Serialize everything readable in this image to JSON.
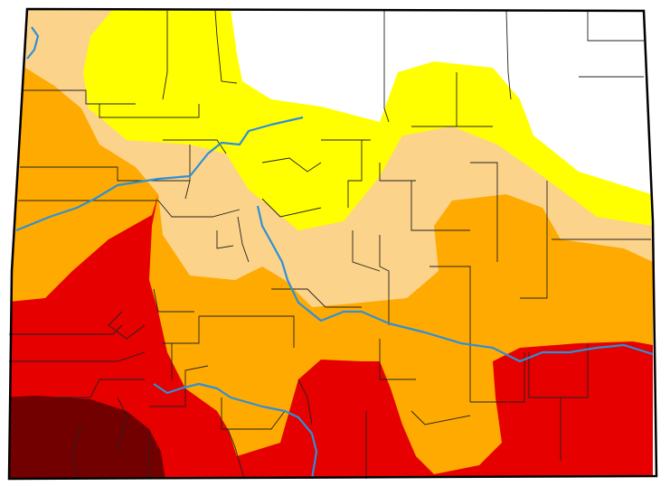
{
  "map": {
    "region": "Colorado",
    "type": "drought-monitor",
    "categories": [
      {
        "key": "none",
        "color": "#ffffff"
      },
      {
        "key": "D0",
        "color": "#ffff00"
      },
      {
        "key": "D1",
        "color": "#fcd38a"
      },
      {
        "key": "D2",
        "color": "#ffaa00"
      },
      {
        "key": "D3",
        "color": "#e60000"
      },
      {
        "key": "D4",
        "color": "#730000"
      }
    ],
    "colors": {
      "border": "#000000",
      "county_lines": "#222222",
      "river": "#2f8fd8"
    }
  }
}
